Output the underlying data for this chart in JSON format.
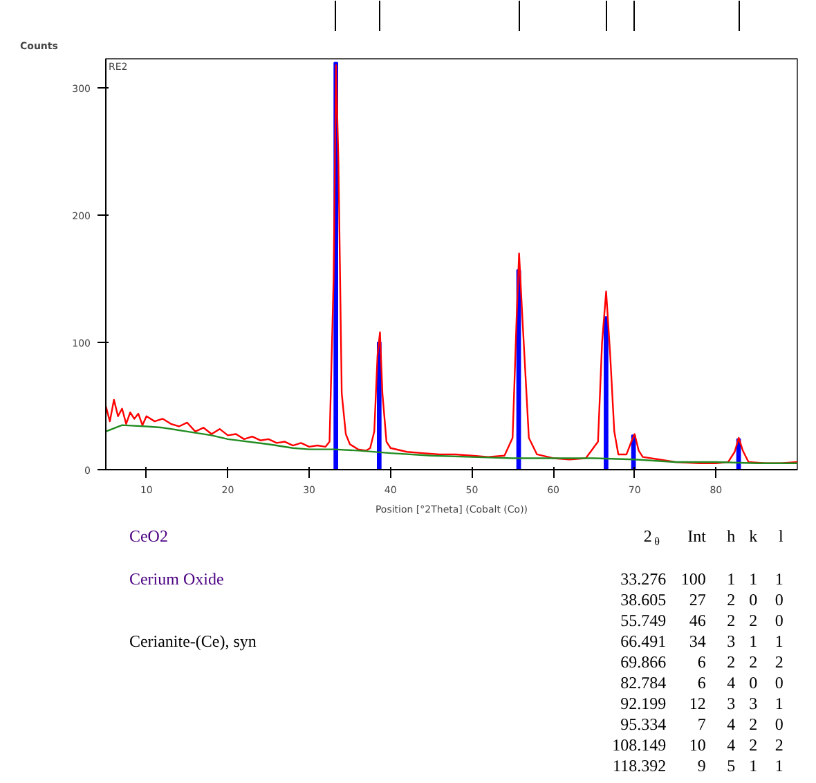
{
  "chart_data": [
    {
      "type": "line",
      "ylabel": "Counts",
      "xlabel": "Position [°2Theta] (Cobalt (Co))",
      "annotations": [
        "RE2"
      ],
      "xlim": [
        5,
        90
      ],
      "ylim": [
        0,
        323
      ],
      "xticks": [
        10,
        20,
        30,
        40,
        50,
        60,
        70,
        80
      ],
      "yticks": [
        0,
        100,
        200,
        300
      ],
      "tick_labels": "xy",
      "grid": false,
      "line_style": "solid",
      "series": [
        {
          "color": "#ff0000",
          "x": [
            5,
            5.5,
            6,
            6.5,
            7,
            7.5,
            8,
            8.5,
            9,
            9.5,
            10,
            11,
            12,
            13,
            14,
            15,
            16,
            17,
            18,
            19,
            20,
            21,
            22,
            23,
            24,
            25,
            26,
            27,
            28,
            29,
            30,
            31,
            32,
            32.5,
            33,
            33.3,
            33.6,
            34,
            34.5,
            35,
            36,
            37,
            37.5,
            38,
            38.4,
            38.7,
            39,
            39.5,
            40,
            42,
            44,
            46,
            48,
            50,
            52,
            54,
            55,
            55.5,
            55.8,
            56.2,
            57,
            58,
            60,
            62,
            64,
            65.5,
            66,
            66.5,
            67,
            67.5,
            68,
            69,
            69.6,
            70,
            70.5,
            71,
            73,
            75,
            78,
            80,
            81.5,
            82.3,
            82.8,
            83.3,
            84,
            86,
            88,
            90
          ],
          "values": [
            50,
            38,
            55,
            42,
            48,
            36,
            45,
            40,
            44,
            35,
            42,
            38,
            40,
            36,
            34,
            37,
            30,
            33,
            28,
            32,
            27,
            28,
            24,
            26,
            23,
            24,
            21,
            22,
            19,
            21,
            18,
            19,
            18,
            22,
            150,
            318,
            240,
            60,
            28,
            20,
            16,
            15,
            17,
            30,
            90,
            108,
            60,
            22,
            17,
            14,
            13,
            12,
            12,
            11,
            10,
            11,
            25,
            120,
            170,
            120,
            25,
            12,
            9,
            8,
            9,
            22,
            100,
            140,
            90,
            30,
            12,
            12,
            22,
            28,
            15,
            10,
            8,
            6,
            5,
            5,
            6,
            14,
            25,
            15,
            6,
            5,
            5,
            6
          ]
        },
        {
          "color": "#228b22",
          "x": [
            5,
            7,
            10,
            12,
            15,
            18,
            20,
            25,
            28,
            30,
            33,
            36,
            40,
            45,
            50,
            55,
            60,
            65,
            70,
            75,
            80,
            85,
            90
          ],
          "values": [
            30,
            35,
            34,
            33,
            30,
            27,
            24,
            20,
            17,
            16,
            16,
            15,
            13,
            11,
            10,
            9,
            9,
            9,
            8,
            6,
            6,
            5,
            5
          ]
        },
        {
          "type": "bar",
          "color": "#0000ff",
          "x": [
            33.276,
            38.605,
            55.749,
            66.491,
            69.866,
            82.784
          ],
          "values": [
            320,
            100,
            157,
            120,
            27,
            24
          ]
        }
      ]
    },
    {
      "type": "other",
      "annotations": [
        "CeO2",
        "Cerium Oxide",
        "Cerianite-(Ce), syn",
        "2$_{θ}$",
        "Int",
        "h",
        "k",
        "l",
        "33.276",
        "100",
        "1",
        "1",
        "1",
        "38.605",
        "27",
        "2",
        "0",
        "0",
        "55.749",
        "46",
        "2",
        "2",
        "0",
        "66.491",
        "34",
        "3",
        "1",
        "1",
        "69.866",
        "6",
        "2",
        "2",
        "2",
        "82.784",
        "6",
        "4",
        "0",
        "0",
        "92.199",
        "12",
        "3",
        "3",
        "1",
        "95.334",
        "7",
        "4",
        "2",
        "0",
        "108.149",
        "10",
        "4",
        "2",
        "2",
        "118.392",
        "9",
        "5",
        "1",
        "1"
      ]
    }
  ]
}
